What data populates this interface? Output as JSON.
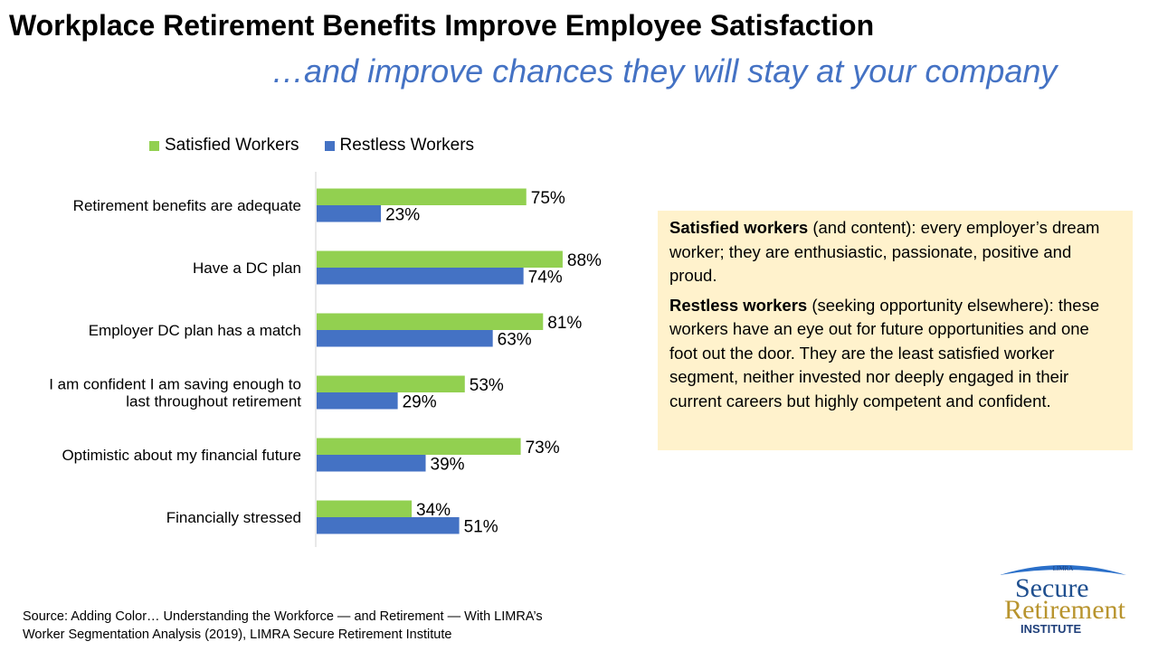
{
  "title": "Workplace Retirement Benefits Improve Employee Satisfaction",
  "subtitle": "…and improve chances they will stay at your company",
  "chart_data": {
    "type": "bar",
    "orientation": "horizontal",
    "categories": [
      "Retirement benefits are adequate",
      "Have a DC plan",
      "Employer DC plan has a match",
      "I am confident I am saving enough to last throughout retirement",
      "Optimistic about my financial future",
      "Financially stressed"
    ],
    "category_lines": [
      [
        "Retirement benefits are adequate"
      ],
      [
        "Have a DC plan"
      ],
      [
        "Employer DC plan has a match"
      ],
      [
        "I am confident I am saving enough to",
        "last throughout retirement"
      ],
      [
        "Optimistic about my financial future"
      ],
      [
        "Financially stressed"
      ]
    ],
    "series": [
      {
        "name": "Satisfied Workers",
        "color": "#92D050",
        "values": [
          75,
          88,
          81,
          53,
          73,
          34
        ],
        "labels": [
          "75%",
          "88%",
          "81%",
          "53%",
          "73%",
          "34%"
        ]
      },
      {
        "name": "Restless Workers",
        "color": "#4472C4",
        "values": [
          23,
          74,
          63,
          29,
          39,
          51
        ],
        "labels": [
          "23%",
          "74%",
          "63%",
          "29%",
          "39%",
          "51%"
        ]
      }
    ],
    "xlim": [
      0,
      100
    ],
    "unit": "%",
    "grid": false,
    "legend": "top"
  },
  "definitions": [
    {
      "term": "Satisfied workers",
      "text": " (and content): every employer’s dream worker; they are enthusiastic, passionate, positive and proud."
    },
    {
      "term": "Restless workers",
      "text": " (seeking opportunity elsewhere): these workers have an eye out for future opportunities and one foot out the door. They are the least satisfied worker segment, neither invested nor deeply engaged in their current careers but highly competent and confident."
    }
  ],
  "source": [
    "Source: Adding Color… Understanding the Workforce — and Retirement — With LIMRA’s",
    "Worker Segmentation Analysis (2019), LIMRA Secure Retirement Institute"
  ],
  "logo": {
    "top": "LIMRA",
    "line1": "Secure",
    "line2": "Retirement",
    "line3": "INSTITUTE"
  }
}
